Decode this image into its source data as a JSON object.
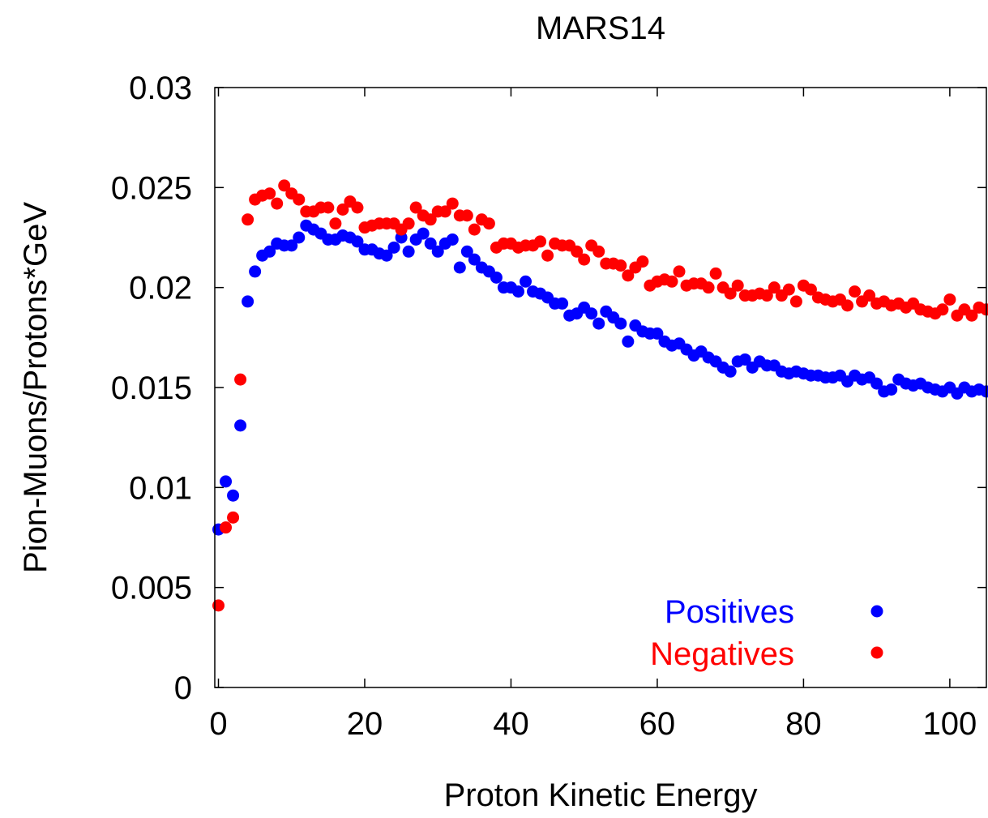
{
  "chart_data": {
    "type": "scatter",
    "title": "MARS14",
    "xlabel": "Proton Kinetic Energy",
    "ylabel": "Pion-Muons/Protons*GeV",
    "xlim": [
      -0.5,
      105
    ],
    "ylim": [
      0,
      0.03
    ],
    "xticks": [
      0,
      20,
      40,
      60,
      80,
      100
    ],
    "xtick_labels": [
      "0",
      "20",
      "40",
      "60",
      "80",
      "100"
    ],
    "yticks": [
      0,
      0.005,
      0.01,
      0.015,
      0.02,
      0.025,
      0.03
    ],
    "ytick_labels": [
      "0",
      "0.005",
      "0.01",
      "0.015",
      "0.02",
      "0.025",
      "0.03"
    ],
    "grid": false,
    "legend_position": "bottom-right",
    "series": [
      {
        "name": "Positives",
        "color": "#0000ff",
        "x": [
          0,
          1,
          2,
          3,
          4,
          5,
          6,
          7,
          8,
          9,
          10,
          11,
          12,
          13,
          14,
          15,
          16,
          17,
          18,
          19,
          20,
          21,
          22,
          23,
          24,
          25,
          26,
          27,
          28,
          29,
          30,
          31,
          32,
          33,
          34,
          35,
          36,
          37,
          38,
          39,
          40,
          41,
          42,
          43,
          44,
          45,
          46,
          47,
          48,
          49,
          50,
          51,
          52,
          53,
          54,
          55,
          56,
          57,
          58,
          59,
          60,
          61,
          62,
          63,
          64,
          65,
          66,
          67,
          68,
          69,
          70,
          71,
          72,
          73,
          74,
          75,
          76,
          77,
          78,
          79,
          80,
          81,
          82,
          83,
          84,
          85,
          86,
          87,
          88,
          89,
          90,
          91,
          92,
          93,
          94,
          95,
          96,
          97,
          98,
          99,
          100,
          101,
          102,
          103,
          104,
          105
        ],
        "y": [
          0.0079,
          0.0103,
          0.0096,
          0.0131,
          0.0193,
          0.0208,
          0.0216,
          0.0218,
          0.0222,
          0.0221,
          0.0221,
          0.0225,
          0.0231,
          0.0229,
          0.0227,
          0.0224,
          0.0224,
          0.0226,
          0.0225,
          0.0223,
          0.0219,
          0.0219,
          0.0217,
          0.0216,
          0.022,
          0.0225,
          0.0218,
          0.0224,
          0.0227,
          0.0222,
          0.0218,
          0.0222,
          0.0224,
          0.021,
          0.0218,
          0.0214,
          0.021,
          0.0208,
          0.0205,
          0.02,
          0.02,
          0.0198,
          0.0203,
          0.0198,
          0.0197,
          0.0195,
          0.0192,
          0.0192,
          0.0186,
          0.0187,
          0.019,
          0.0187,
          0.0182,
          0.0188,
          0.0185,
          0.0182,
          0.0173,
          0.0181,
          0.0178,
          0.0177,
          0.0177,
          0.0173,
          0.0171,
          0.0172,
          0.0169,
          0.0166,
          0.0168,
          0.0165,
          0.0163,
          0.016,
          0.0158,
          0.0163,
          0.0164,
          0.016,
          0.0163,
          0.0161,
          0.0161,
          0.0158,
          0.0157,
          0.0158,
          0.0157,
          0.0156,
          0.0156,
          0.0155,
          0.0155,
          0.0156,
          0.0153,
          0.0156,
          0.0154,
          0.0155,
          0.0152,
          0.0148,
          0.0149,
          0.0154,
          0.0152,
          0.0151,
          0.0152,
          0.015,
          0.0149,
          0.0148,
          0.015,
          0.0147,
          0.015,
          0.0148,
          0.0149,
          0.0148
        ]
      },
      {
        "name": "Negatives",
        "color": "#ff0000",
        "x": [
          0,
          1,
          2,
          3,
          4,
          5,
          6,
          7,
          8,
          9,
          10,
          11,
          12,
          13,
          14,
          15,
          16,
          17,
          18,
          19,
          20,
          21,
          22,
          23,
          24,
          25,
          26,
          27,
          28,
          29,
          30,
          31,
          32,
          33,
          34,
          35,
          36,
          37,
          38,
          39,
          40,
          41,
          42,
          43,
          44,
          45,
          46,
          47,
          48,
          49,
          50,
          51,
          52,
          53,
          54,
          55,
          56,
          57,
          58,
          59,
          60,
          61,
          62,
          63,
          64,
          65,
          66,
          67,
          68,
          69,
          70,
          71,
          72,
          73,
          74,
          75,
          76,
          77,
          78,
          79,
          80,
          81,
          82,
          83,
          84,
          85,
          86,
          87,
          88,
          89,
          90,
          91,
          92,
          93,
          94,
          95,
          96,
          97,
          98,
          99,
          100,
          101,
          102,
          103,
          104,
          105
        ],
        "y": [
          0.0041,
          0.008,
          0.0085,
          0.0154,
          0.0234,
          0.0244,
          0.0246,
          0.0247,
          0.0242,
          0.0251,
          0.0247,
          0.0244,
          0.0238,
          0.0238,
          0.024,
          0.024,
          0.0232,
          0.0239,
          0.0243,
          0.024,
          0.023,
          0.0231,
          0.0232,
          0.0232,
          0.0232,
          0.0229,
          0.0232,
          0.024,
          0.0236,
          0.0234,
          0.0238,
          0.0238,
          0.0242,
          0.0236,
          0.0236,
          0.0229,
          0.0234,
          0.0232,
          0.022,
          0.0222,
          0.0222,
          0.022,
          0.0221,
          0.0221,
          0.0223,
          0.0216,
          0.0222,
          0.0221,
          0.0221,
          0.0218,
          0.0214,
          0.0221,
          0.0218,
          0.0212,
          0.0212,
          0.0211,
          0.0206,
          0.021,
          0.0213,
          0.0201,
          0.0203,
          0.0204,
          0.0203,
          0.0208,
          0.0201,
          0.0202,
          0.0202,
          0.02,
          0.0207,
          0.02,
          0.0197,
          0.0201,
          0.0196,
          0.0196,
          0.0197,
          0.0196,
          0.02,
          0.0196,
          0.0199,
          0.0193,
          0.0201,
          0.0199,
          0.0195,
          0.0194,
          0.0193,
          0.0194,
          0.0191,
          0.0198,
          0.0193,
          0.0196,
          0.0192,
          0.0193,
          0.0191,
          0.0192,
          0.019,
          0.0192,
          0.0189,
          0.0188,
          0.0187,
          0.0189,
          0.0194,
          0.0186,
          0.0189,
          0.0186,
          0.019,
          0.0189
        ]
      }
    ]
  }
}
